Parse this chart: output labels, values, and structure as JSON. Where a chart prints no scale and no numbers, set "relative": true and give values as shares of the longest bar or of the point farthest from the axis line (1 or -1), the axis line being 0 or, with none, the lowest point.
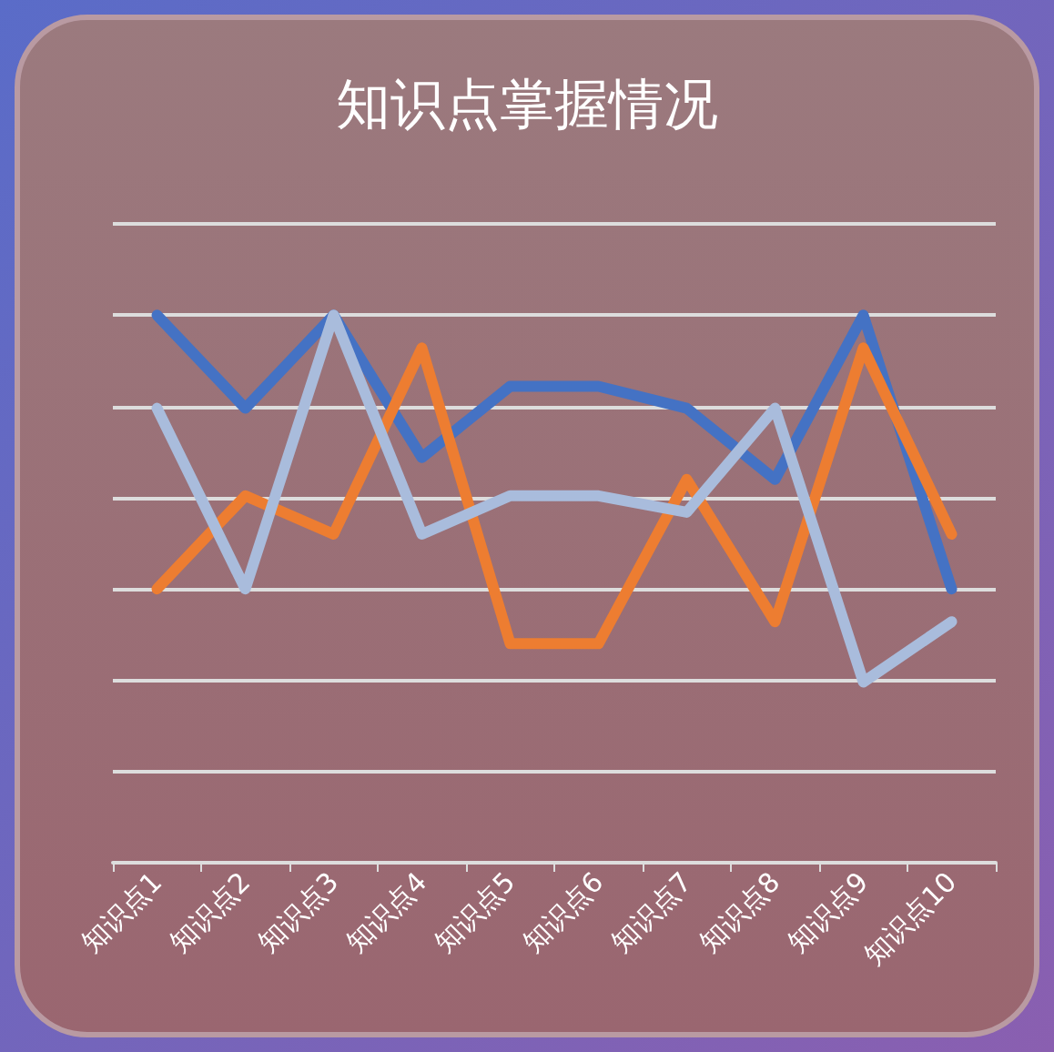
{
  "chart_data": {
    "type": "line",
    "title": "知识点掌握情况",
    "relative": true,
    "grid": "y",
    "marker": "none",
    "line_style": "solid",
    "categories": [
      "知识点1",
      "知识点2",
      "知识点3",
      "知识点4",
      "知识点5",
      "知识点6",
      "知识点7",
      "知识点8",
      "知识点9",
      "知识点10"
    ],
    "series": [
      {
        "color": "#4472c4",
        "values": [
          1,
          0.83,
          1,
          0.74,
          0.87,
          0.87,
          0.83,
          0.7,
          1,
          0.5
        ]
      },
      {
        "color": "#ed7d31",
        "values": [
          0.5,
          0.67,
          0.6,
          0.94,
          0.4,
          0.4,
          0.7,
          0.44,
          0.94,
          0.6
        ]
      },
      {
        "color": "#a9bcdc",
        "values": [
          0.83,
          0.5,
          1,
          0.6,
          0.67,
          0.67,
          0.64,
          0.83,
          0.33,
          0.44
        ]
      }
    ]
  }
}
